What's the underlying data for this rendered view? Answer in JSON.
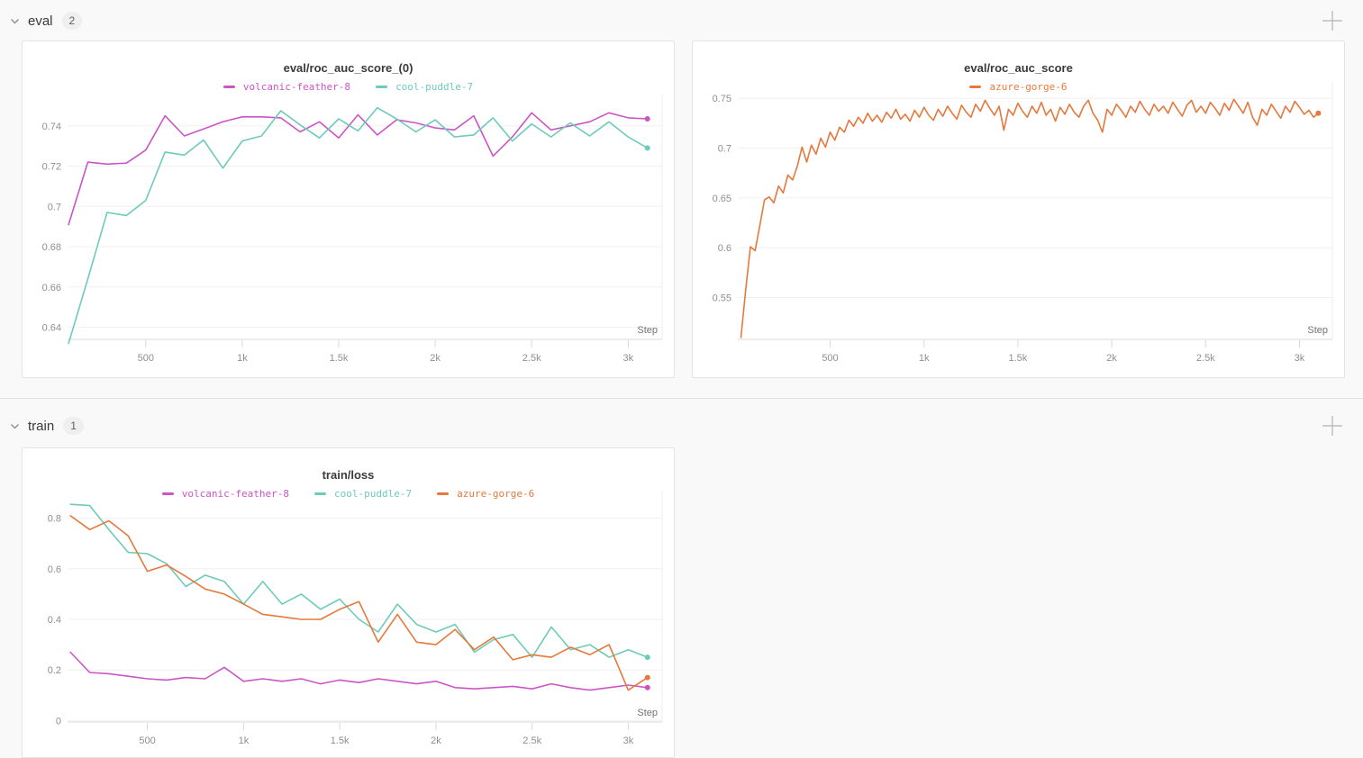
{
  "sections": [
    {
      "label": "eval",
      "count": "2"
    },
    {
      "label": "train",
      "count": "1"
    }
  ],
  "colors": {
    "run_volcanic_feather_8": "#cc55c6",
    "run_cool_puddle_7": "#6dcbb9",
    "run_azure_gorge_6": "#e5793d"
  },
  "chart_data": [
    {
      "type": "line",
      "title": "eval/roc_auc_score_(0)",
      "xlabel": "Step",
      "ylabel": "",
      "grid": true,
      "legend_position": "top",
      "xlim": [
        95,
        3176
      ],
      "ylim": [
        0.634,
        0.7502
      ],
      "x_tick_values": [
        500,
        1000,
        1500,
        2000,
        2500,
        3000
      ],
      "x_tick_labels": [
        "500",
        "1k",
        "1.5k",
        "2k",
        "2.5k",
        "3k"
      ],
      "y_tick_values": [
        0.64,
        0.66,
        0.68,
        0.7,
        0.72,
        0.74
      ],
      "y_tick_labels": [
        "0.64",
        "0.66",
        "0.68",
        "0.7",
        "0.72",
        "0.74"
      ],
      "series": [
        {
          "name": "volcanic-feather-8",
          "color": "#cc55c6",
          "x0": 100,
          "dx": 100,
          "y": [
            0.691,
            0.722,
            0.721,
            0.7215,
            0.728,
            0.745,
            0.735,
            0.7385,
            0.742,
            0.7445,
            0.7445,
            0.744,
            0.737,
            0.742,
            0.734,
            0.7455,
            0.7355,
            0.743,
            0.7415,
            0.739,
            0.738,
            0.745,
            0.725,
            0.7345,
            0.7465,
            0.738,
            0.74,
            0.742,
            0.7465,
            0.744,
            0.7435
          ]
        },
        {
          "name": "cool-puddle-7",
          "color": "#6dcbb9",
          "x0": 100,
          "dx": 100,
          "y": [
            0.632,
            0.664,
            0.697,
            0.6955,
            0.703,
            0.727,
            0.7255,
            0.733,
            0.719,
            0.7325,
            0.735,
            0.7475,
            0.7405,
            0.734,
            0.7435,
            0.7375,
            0.749,
            0.7435,
            0.737,
            0.743,
            0.7345,
            0.7355,
            0.744,
            0.7325,
            0.741,
            0.7345,
            0.7415,
            0.735,
            0.742,
            0.7345,
            0.729
          ]
        }
      ]
    },
    {
      "type": "line",
      "title": "eval/roc_auc_score",
      "xlabel": "Step",
      "ylabel": "",
      "grid": true,
      "legend_position": "top",
      "xlim": [
        8,
        3175
      ],
      "ylim": [
        0.508,
        0.7565
      ],
      "x_tick_values": [
        500,
        1000,
        1500,
        2000,
        2500,
        3000
      ],
      "x_tick_labels": [
        "500",
        "1k",
        "1.5k",
        "2k",
        "2.5k",
        "3k"
      ],
      "y_tick_values": [
        0.55,
        0.6,
        0.65,
        0.7,
        0.75
      ],
      "y_tick_labels": [
        "0.55",
        "0.6",
        "0.65",
        "0.7",
        "0.75"
      ],
      "series": [
        {
          "name": "azure-gorge-6",
          "color": "#e5793d",
          "x0": 25,
          "dx": 25,
          "y": [
            0.51,
            0.558,
            0.601,
            0.597,
            0.622,
            0.648,
            0.651,
            0.645,
            0.662,
            0.655,
            0.673,
            0.668,
            0.682,
            0.701,
            0.686,
            0.703,
            0.694,
            0.71,
            0.701,
            0.716,
            0.708,
            0.721,
            0.716,
            0.728,
            0.722,
            0.731,
            0.725,
            0.735,
            0.727,
            0.733,
            0.726,
            0.736,
            0.73,
            0.739,
            0.729,
            0.734,
            0.727,
            0.738,
            0.731,
            0.741,
            0.733,
            0.728,
            0.739,
            0.732,
            0.742,
            0.735,
            0.729,
            0.743,
            0.736,
            0.731,
            0.744,
            0.737,
            0.748,
            0.74,
            0.733,
            0.742,
            0.718,
            0.739,
            0.733,
            0.745,
            0.737,
            0.731,
            0.742,
            0.735,
            0.746,
            0.733,
            0.739,
            0.727,
            0.741,
            0.734,
            0.744,
            0.736,
            0.731,
            0.742,
            0.748,
            0.735,
            0.728,
            0.716,
            0.739,
            0.733,
            0.744,
            0.738,
            0.731,
            0.742,
            0.736,
            0.747,
            0.739,
            0.733,
            0.744,
            0.737,
            0.742,
            0.735,
            0.746,
            0.739,
            0.732,
            0.743,
            0.748,
            0.736,
            0.742,
            0.735,
            0.746,
            0.74,
            0.733,
            0.745,
            0.738,
            0.749,
            0.742,
            0.735,
            0.746,
            0.731,
            0.723,
            0.739,
            0.733,
            0.744,
            0.737,
            0.73,
            0.742,
            0.736,
            0.747,
            0.741,
            0.734,
            0.738,
            0.731,
            0.735
          ]
        }
      ]
    },
    {
      "type": "line",
      "title": "train/loss",
      "xlabel": "Step",
      "ylabel": "",
      "grid": true,
      "legend_position": "top",
      "xlim": [
        85,
        3176
      ],
      "ylim": [
        -0.006,
        0.8665
      ],
      "x_tick_values": [
        500,
        1000,
        1500,
        2000,
        2500,
        3000
      ],
      "x_tick_labels": [
        "500",
        "1k",
        "1.5k",
        "2k",
        "2.5k",
        "3k"
      ],
      "y_tick_values": [
        0,
        0.2,
        0.4,
        0.6,
        0.8
      ],
      "y_tick_labels": [
        "0",
        "0.2",
        "0.4",
        "0.6",
        "0.8"
      ],
      "series": [
        {
          "name": "volcanic-feather-8",
          "color": "#cc55c6",
          "x0": 100,
          "dx": 100,
          "y": [
            0.27,
            0.19,
            0.185,
            0.175,
            0.165,
            0.16,
            0.17,
            0.165,
            0.21,
            0.155,
            0.165,
            0.155,
            0.165,
            0.145,
            0.16,
            0.15,
            0.165,
            0.155,
            0.145,
            0.155,
            0.13,
            0.125,
            0.13,
            0.135,
            0.125,
            0.145,
            0.13,
            0.12,
            0.13,
            0.14,
            0.13
          ]
        },
        {
          "name": "cool-puddle-7",
          "color": "#6dcbb9",
          "x0": 100,
          "dx": 100,
          "y": [
            0.855,
            0.85,
            0.755,
            0.665,
            0.66,
            0.62,
            0.53,
            0.575,
            0.55,
            0.46,
            0.55,
            0.46,
            0.5,
            0.44,
            0.48,
            0.4,
            0.35,
            0.46,
            0.38,
            0.35,
            0.38,
            0.27,
            0.32,
            0.34,
            0.25,
            0.37,
            0.28,
            0.3,
            0.25,
            0.28,
            0.25
          ]
        },
        {
          "name": "azure-gorge-6",
          "color": "#e5793d",
          "x0": 100,
          "dx": 100,
          "y": [
            0.81,
            0.755,
            0.79,
            0.73,
            0.59,
            0.615,
            0.57,
            0.52,
            0.5,
            0.46,
            0.42,
            0.41,
            0.4,
            0.4,
            0.44,
            0.47,
            0.31,
            0.42,
            0.31,
            0.3,
            0.36,
            0.28,
            0.33,
            0.24,
            0.26,
            0.25,
            0.29,
            0.26,
            0.3,
            0.12,
            0.17
          ]
        }
      ]
    }
  ]
}
